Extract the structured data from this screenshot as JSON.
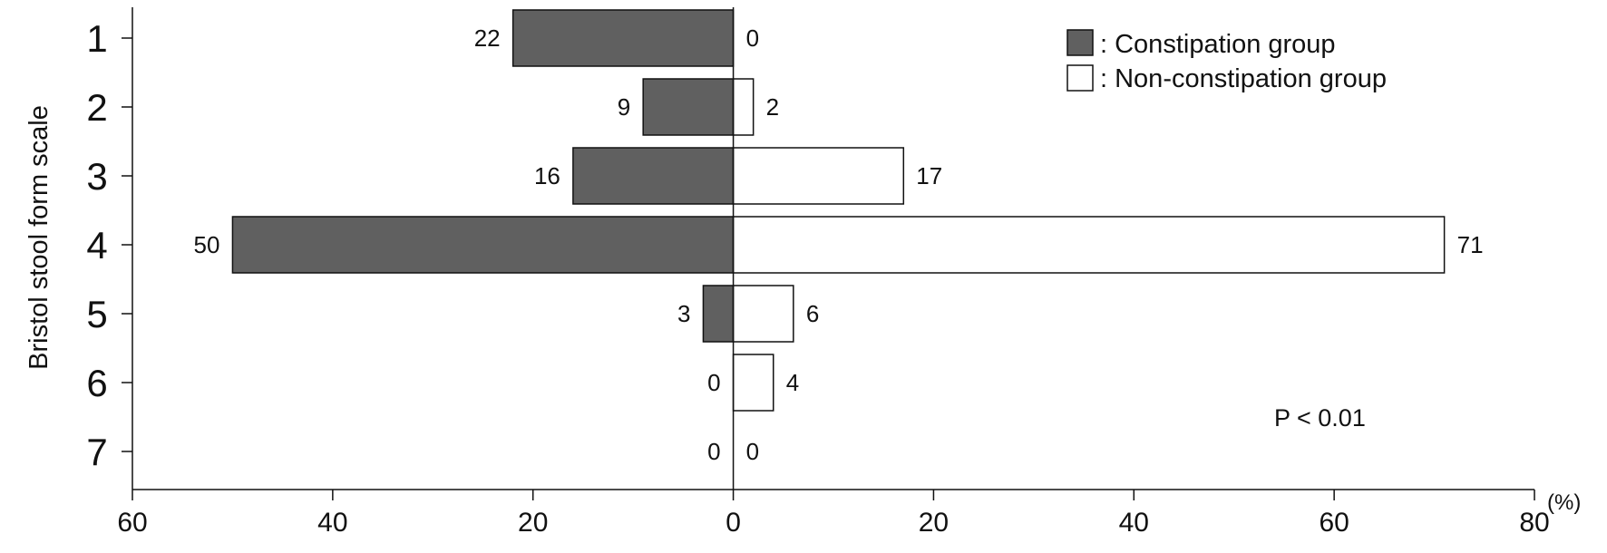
{
  "chart_data": {
    "type": "bar",
    "orientation": "horizontal-diverging",
    "ylabel": "Bristol stool form scale",
    "categories": [
      "1",
      "2",
      "3",
      "4",
      "5",
      "6",
      "7"
    ],
    "series": [
      {
        "name": ": Constipation group",
        "direction": "left",
        "color": "#606060",
        "values": [
          22,
          9,
          16,
          50,
          3,
          0,
          0
        ]
      },
      {
        "name": ": Non-constipation group",
        "direction": "right",
        "color": "#ffffff",
        "values": [
          0,
          2,
          17,
          71,
          6,
          4,
          0
        ]
      }
    ],
    "xlim": [
      -60,
      80
    ],
    "x_ticks": [
      -60,
      -40,
      -20,
      0,
      20,
      40,
      60,
      80
    ],
    "x_tick_labels": [
      "60",
      "40",
      "20",
      "0",
      "20",
      "40",
      "60",
      "80"
    ],
    "x_unit": "(%)",
    "annotation": "P < 0.01",
    "legend_position": "top-right",
    "grid": false
  }
}
